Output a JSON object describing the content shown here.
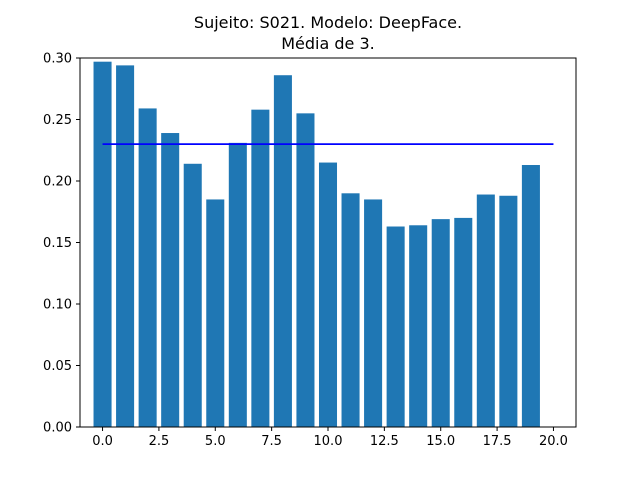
{
  "chart_data": {
    "type": "bar",
    "title_line1": "Sujeito: S021. Modelo: DeepFace.",
    "title_line2": "Média de 3.",
    "xlabel": "",
    "ylabel": "",
    "bar_color": "#1f77b4",
    "line_color": "#0000ff",
    "x": [
      0,
      1,
      2,
      3,
      4,
      5,
      6,
      7,
      8,
      9,
      10,
      11,
      12,
      13,
      14,
      15,
      16,
      17,
      18,
      19
    ],
    "values": [
      0.297,
      0.294,
      0.259,
      0.239,
      0.214,
      0.185,
      0.231,
      0.258,
      0.286,
      0.255,
      0.215,
      0.19,
      0.185,
      0.163,
      0.164,
      0.169,
      0.17,
      0.189,
      0.188,
      0.213
    ],
    "mean_line": {
      "x_start": 0,
      "x_end": 20,
      "y": 0.23
    },
    "xlim": [
      -1.0,
      21.0
    ],
    "ylim": [
      0.0,
      0.3
    ],
    "xticks": [
      0.0,
      2.5,
      5.0,
      7.5,
      10.0,
      12.5,
      15.0,
      17.5,
      20.0
    ],
    "xtick_labels": [
      "0.0",
      "2.5",
      "5.0",
      "7.5",
      "10.0",
      "12.5",
      "15.0",
      "17.5",
      "20.0"
    ],
    "yticks": [
      0.0,
      0.05,
      0.1,
      0.15,
      0.2,
      0.25,
      0.3
    ],
    "ytick_labels": [
      "0.00",
      "0.05",
      "0.10",
      "0.15",
      "0.20",
      "0.25",
      "0.30"
    ],
    "grid": false,
    "legend": false
  }
}
